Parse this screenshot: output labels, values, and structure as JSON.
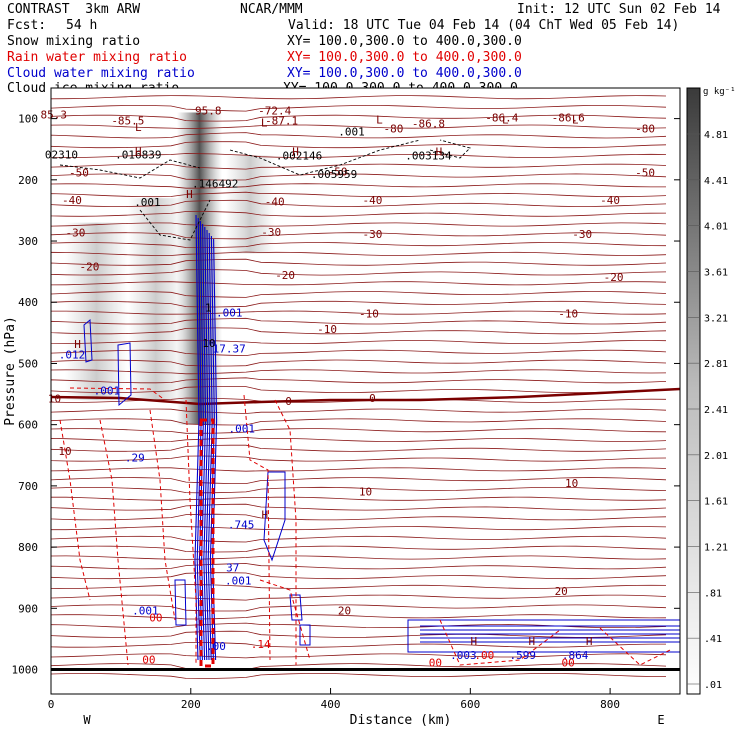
{
  "header": {
    "title": "CONTRAST  3km ARW",
    "center": "NCAR/MMM",
    "init": "Init: 12 UTC Sun 02 Feb 14",
    "fcst_label": "Fcst:",
    "fcst_value": "54 h",
    "valid": "Valid: 18 UTC Tue 04 Feb 14 (04 ChT Wed 05 Feb 14)"
  },
  "fields": [
    {
      "name": "Snow mixing ratio",
      "xy": "XY= 100.0,300.0 to 400.0,300.0",
      "color": "#000000"
    },
    {
      "name": "Rain water mixing ratio",
      "xy": "XY= 100.0,300.0 to 400.0,300.0",
      "color": "#e00000"
    },
    {
      "name": "Cloud water mixing ratio",
      "xy": "XY= 100.0,300.0 to 400.0,300.0",
      "color": "#0000cc"
    },
    {
      "name": "Cloud ice mixing ratio",
      "xy": "XY= 100.0,300.0 to 400.0,300.0",
      "color": "#000000"
    }
  ],
  "colorbar": {
    "unit": "g kg⁻¹",
    "labels": [
      "4.81",
      "4.41",
      "4.01",
      "3.61",
      "3.21",
      "2.81",
      "2.41",
      "2.01",
      "1.61",
      "1.21",
      ".81",
      ".41",
      ".01"
    ]
  },
  "chart_data": {
    "type": "cross-section",
    "xlabel": "Distance (km)",
    "ylabel": "Pressure (hPa)",
    "xlim": [
      0,
      900
    ],
    "ylim": [
      1040,
      50
    ],
    "x_ticks": [
      0,
      200,
      400,
      600,
      800
    ],
    "x_tick_labels": [
      "0",
      "200",
      "400",
      "600",
      "800"
    ],
    "y_ticks": [
      100,
      200,
      300,
      400,
      500,
      600,
      700,
      800,
      900,
      1000
    ],
    "y_tick_labels": [
      "100",
      "200",
      "300",
      "400",
      "500",
      "600",
      "700",
      "800",
      "900",
      "1000"
    ],
    "west_label": "W",
    "east_label": "E",
    "temperature_labels": [
      {
        "x": 4,
        "p": 95,
        "text": "85.3"
      },
      {
        "x": 110,
        "p": 105,
        "text": "-85.5"
      },
      {
        "x": 225,
        "p": 88,
        "text": "95.8"
      },
      {
        "x": 320,
        "p": 88,
        "text": "-72.4"
      },
      {
        "x": 330,
        "p": 105,
        "text": "-87.1"
      },
      {
        "x": 540,
        "p": 110,
        "text": "-86.8"
      },
      {
        "x": 645,
        "p": 100,
        "text": "-86.4"
      },
      {
        "x": 740,
        "p": 100,
        "text": "-86.6"
      },
      {
        "x": 850,
        "p": 118,
        "text": "-80"
      },
      {
        "x": 490,
        "p": 118,
        "text": "-80"
      },
      {
        "x": 40,
        "p": 190,
        "text": "-50"
      },
      {
        "x": 410,
        "p": 188,
        "text": "-50"
      },
      {
        "x": 850,
        "p": 190,
        "text": "-50"
      },
      {
        "x": 30,
        "p": 235,
        "text": "-40"
      },
      {
        "x": 320,
        "p": 237,
        "text": "-40"
      },
      {
        "x": 460,
        "p": 235,
        "text": "-40"
      },
      {
        "x": 800,
        "p": 235,
        "text": "-40"
      },
      {
        "x": 35,
        "p": 288,
        "text": "-30"
      },
      {
        "x": 315,
        "p": 287,
        "text": "-30"
      },
      {
        "x": 460,
        "p": 290,
        "text": "-30"
      },
      {
        "x": 760,
        "p": 290,
        "text": "-30"
      },
      {
        "x": 55,
        "p": 343,
        "text": "-20"
      },
      {
        "x": 335,
        "p": 357,
        "text": "-20"
      },
      {
        "x": 805,
        "p": 360,
        "text": "-20"
      },
      {
        "x": 395,
        "p": 445,
        "text": "-10"
      },
      {
        "x": 455,
        "p": 420,
        "text": "-10"
      },
      {
        "x": 740,
        "p": 420,
        "text": "-10"
      },
      {
        "x": 5,
        "p": 559,
        "text": "10"
      },
      {
        "x": 340,
        "p": 563,
        "text": "0"
      },
      {
        "x": 460,
        "p": 558,
        "text": "0"
      },
      {
        "x": 20,
        "p": 645,
        "text": "10"
      },
      {
        "x": 450,
        "p": 711,
        "text": "10"
      },
      {
        "x": 745,
        "p": 697,
        "text": "10"
      },
      {
        "x": 420,
        "p": 905,
        "text": "20"
      },
      {
        "x": 730,
        "p": 873,
        "text": "20"
      }
    ],
    "cloud_labels": [
      {
        "x": 30,
        "p": 487,
        "text": ".012"
      },
      {
        "x": 80,
        "p": 546,
        "text": ".001"
      },
      {
        "x": 120,
        "p": 655,
        "text": ".29"
      },
      {
        "x": 135,
        "p": 905,
        "text": ".001"
      },
      {
        "x": 255,
        "p": 477,
        "text": "17.37"
      },
      {
        "x": 272,
        "p": 765,
        "text": ".745"
      },
      {
        "x": 268,
        "p": 856,
        "text": ".001"
      },
      {
        "x": 273,
        "p": 608,
        "text": ".001"
      },
      {
        "x": 255,
        "p": 418,
        "text": ".001"
      },
      {
        "x": 236,
        "p": 963,
        "text": ".00"
      },
      {
        "x": 590,
        "p": 978,
        "text": ".003"
      },
      {
        "x": 675,
        "p": 978,
        "text": ".599"
      },
      {
        "x": 750,
        "p": 978,
        "text": ".864"
      },
      {
        "x": 260,
        "p": 835,
        "text": "37"
      }
    ],
    "ice_labels": [
      {
        "x": 15,
        "p": 160,
        "text": "02310"
      },
      {
        "x": 125,
        "p": 160,
        "text": ".016839"
      },
      {
        "x": 355,
        "p": 162,
        "text": ".002146"
      },
      {
        "x": 405,
        "p": 192,
        "text": ".005959"
      },
      {
        "x": 540,
        "p": 162,
        "text": ".003134"
      },
      {
        "x": 235,
        "p": 208,
        "text": ".146492"
      },
      {
        "x": 138,
        "p": 238,
        "text": ".001"
      },
      {
        "x": 430,
        "p": 123,
        "text": ".001"
      }
    ],
    "rain_labels": [
      {
        "x": 150,
        "p": 917,
        "text": "00"
      },
      {
        "x": 140,
        "p": 985,
        "text": "00"
      },
      {
        "x": 300,
        "p": 960,
        "text": ".14"
      },
      {
        "x": 550,
        "p": 990,
        "text": "00"
      },
      {
        "x": 620,
        "p": 978,
        "text": ".00"
      },
      {
        "x": 740,
        "p": 990,
        "text": "00"
      }
    ],
    "extrema_markers": [
      {
        "x": 125,
        "p": 115,
        "text": "L"
      },
      {
        "x": 305,
        "p": 108,
        "text": "L"
      },
      {
        "x": 470,
        "p": 103,
        "text": "L"
      },
      {
        "x": 650,
        "p": 103,
        "text": "L"
      },
      {
        "x": 750,
        "p": 103,
        "text": "L"
      },
      {
        "x": 125,
        "p": 155,
        "text": "H"
      },
      {
        "x": 350,
        "p": 155,
        "text": "H"
      },
      {
        "x": 555,
        "p": 155,
        "text": "H"
      },
      {
        "x": 198,
        "p": 225,
        "text": "H"
      },
      {
        "x": 38,
        "p": 470,
        "text": "H"
      },
      {
        "x": 306,
        "p": 748,
        "text": "H"
      },
      {
        "x": 605,
        "p": 955,
        "text": "H"
      },
      {
        "x": 688,
        "p": 955,
        "text": "H"
      },
      {
        "x": 770,
        "p": 955,
        "text": "H"
      }
    ],
    "hash_labels": [
      {
        "x": 225,
        "p": 410,
        "text": "1"
      },
      {
        "x": 226,
        "p": 468,
        "text": "10"
      }
    ]
  }
}
